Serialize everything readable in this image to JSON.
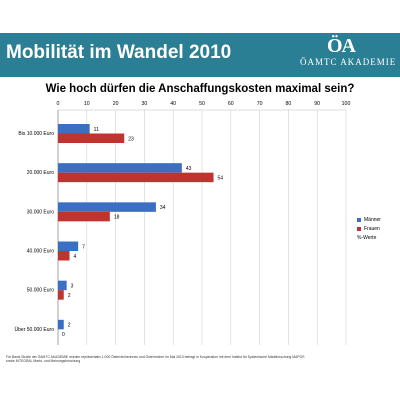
{
  "header": {
    "title": "Mobilität im Wandel 2010",
    "logo_mark": "ÖA",
    "logo_text": "ÖAMTC AKADEMIE"
  },
  "legend": {
    "items": [
      {
        "label": "Männer",
        "color": "#3a6fc4"
      },
      {
        "label": "Frauen",
        "color": "#c0332f"
      },
      {
        "label": "%-Werte",
        "color": ""
      }
    ]
  },
  "footnote": "Für Basis Studie der ÖAMTC AKADEMIE wurden repräsentativ 1.000 Österreicherinnen und Österreicher im Mai 2010 befragt in Kooperation mit dem Institut für Systemische Marktforschung MAPOS sowie INTEGRAL Markt- und Meinungsforschung",
  "chart_data": {
    "type": "bar",
    "orientation": "horizontal",
    "title": "Wie hoch dürfen die Anschaffungskosten maximal sein?",
    "categories": [
      "Bis 10.000 Euro",
      "20.000 Euro",
      "30.000 Euro",
      "40.000 Euro",
      "50.000 Euro",
      "Über 50.000 Euro"
    ],
    "series": [
      {
        "name": "Männer",
        "color": "#3a6fc4",
        "values": [
          11,
          43,
          34,
          7,
          3,
          2
        ]
      },
      {
        "name": "Frauen",
        "color": "#c0332f",
        "values": [
          23,
          54,
          18,
          4,
          2,
          0
        ]
      }
    ],
    "xlim": [
      0,
      100
    ],
    "xticks": [
      "0",
      "10",
      "20",
      "30",
      "40",
      "50",
      "60",
      "70",
      "80",
      "90",
      "100"
    ],
    "grid": true,
    "legend_position": "right"
  }
}
